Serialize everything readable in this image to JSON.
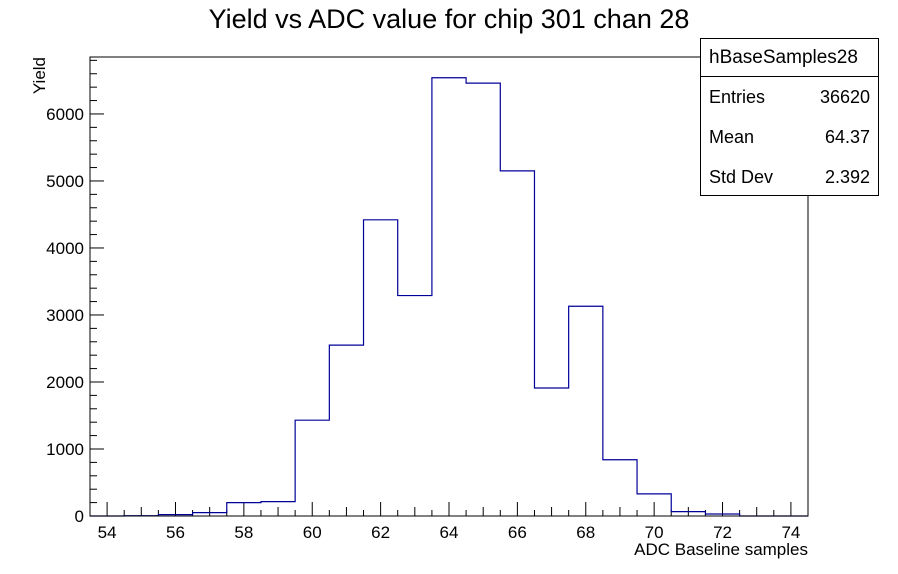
{
  "chart_data": {
    "type": "bar",
    "title": "Yield vs ADC value for chip 301 chan 28",
    "xlabel": "ADC Baseline samples",
    "ylabel": "Yield",
    "xlim": [
      53.5,
      74.5
    ],
    "ylim": [
      0,
      6850
    ],
    "x_ticks": [
      54,
      56,
      58,
      60,
      62,
      64,
      66,
      68,
      70,
      72,
      74
    ],
    "y_ticks": [
      0,
      1000,
      2000,
      3000,
      4000,
      5000,
      6000
    ],
    "bin_width": 1,
    "bin_centers": [
      54,
      55,
      56,
      57,
      58,
      59,
      60,
      61,
      62,
      63,
      64,
      65,
      66,
      67,
      68,
      69,
      70,
      71,
      72,
      73,
      74
    ],
    "values": [
      0,
      5,
      20,
      50,
      200,
      215,
      1430,
      2550,
      4420,
      3290,
      6540,
      6460,
      5150,
      1910,
      3130,
      840,
      330,
      65,
      30,
      0,
      0
    ],
    "line_color": "#000099",
    "grid": false,
    "stats_box": {
      "name": "hBaseSamples28",
      "rows": [
        {
          "label": "Entries",
          "value": "36620"
        },
        {
          "label": "Mean",
          "value": "64.37"
        },
        {
          "label": "Std Dev",
          "value": "2.392"
        }
      ]
    }
  }
}
